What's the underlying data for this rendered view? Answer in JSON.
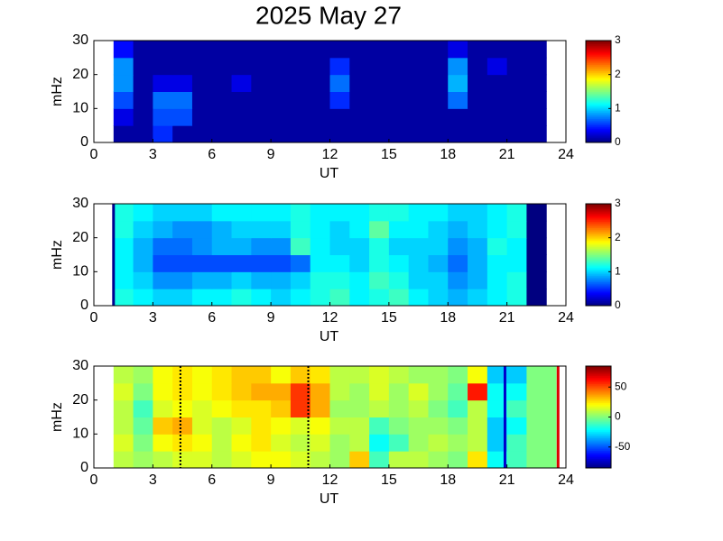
{
  "chart_data": [
    {
      "type": "heatmap",
      "title": "2025 May 27",
      "xlabel": "UT",
      "ylabel": "mHz",
      "colormap": "jet",
      "xlim": [
        0,
        24
      ],
      "xticks": [
        0,
        3,
        6,
        9,
        12,
        15,
        18,
        21,
        24
      ],
      "ylim": [
        0,
        30
      ],
      "yticks": [
        0,
        10,
        20,
        30
      ],
      "clim": [
        0,
        3
      ],
      "cticks": [
        0,
        1,
        2,
        3
      ],
      "x_edges": [
        1,
        2,
        3,
        4,
        5,
        6,
        7,
        8,
        9,
        10,
        11,
        12,
        13,
        14,
        15,
        16,
        17,
        18,
        19,
        20,
        21,
        22,
        23
      ],
      "y_edges": [
        0,
        5,
        10,
        15,
        20,
        25,
        30
      ],
      "values": [
        [
          0.1,
          0.1,
          0.5,
          0.1,
          0.1,
          0.1,
          0.1,
          0.1,
          0.1,
          0.1,
          0.1,
          0.1,
          0.1,
          0.1,
          0.1,
          0.1,
          0.1,
          0.1,
          0.1,
          0.1,
          0.1,
          0.1
        ],
        [
          0.3,
          0.1,
          0.6,
          0.6,
          0.1,
          0.1,
          0.1,
          0.1,
          0.1,
          0.1,
          0.1,
          0.1,
          0.1,
          0.1,
          0.1,
          0.1,
          0.1,
          0.1,
          0.1,
          0.1,
          0.1,
          0.1
        ],
        [
          0.6,
          0.1,
          0.7,
          0.7,
          0.1,
          0.1,
          0.1,
          0.1,
          0.1,
          0.1,
          0.1,
          0.5,
          0.1,
          0.1,
          0.1,
          0.1,
          0.1,
          0.7,
          0.1,
          0.1,
          0.1,
          0.1
        ],
        [
          0.8,
          0.1,
          0.3,
          0.3,
          0.1,
          0.1,
          0.3,
          0.1,
          0.1,
          0.1,
          0.1,
          0.7,
          0.1,
          0.1,
          0.1,
          0.1,
          0.1,
          0.9,
          0.1,
          0.1,
          0.1,
          0.1
        ],
        [
          0.8,
          0.1,
          0.1,
          0.1,
          0.1,
          0.1,
          0.1,
          0.1,
          0.1,
          0.1,
          0.1,
          0.5,
          0.1,
          0.1,
          0.1,
          0.1,
          0.1,
          0.8,
          0.1,
          0.3,
          0.1,
          0.1
        ],
        [
          0.4,
          0.1,
          0.1,
          0.1,
          0.1,
          0.1,
          0.1,
          0.1,
          0.1,
          0.1,
          0.1,
          0.1,
          0.1,
          0.1,
          0.1,
          0.1,
          0.1,
          0.3,
          0.1,
          0.1,
          0.1,
          0.1
        ]
      ],
      "vlines": []
    },
    {
      "type": "heatmap",
      "xlabel": "UT",
      "ylabel": "mHz",
      "colormap": "jet",
      "xlim": [
        0,
        24
      ],
      "xticks": [
        0,
        3,
        6,
        9,
        12,
        15,
        18,
        21,
        24
      ],
      "ylim": [
        0,
        30
      ],
      "yticks": [
        0,
        10,
        20,
        30
      ],
      "clim": [
        0,
        3
      ],
      "cticks": [
        0,
        1,
        2,
        3
      ],
      "x_edges": [
        1,
        2,
        3,
        4,
        5,
        6,
        7,
        8,
        9,
        10,
        11,
        12,
        13,
        14,
        15,
        16,
        17,
        18,
        19,
        20,
        21,
        22,
        23
      ],
      "y_edges": [
        0,
        5,
        10,
        15,
        20,
        25,
        30
      ],
      "values": [
        [
          1.2,
          1.1,
          1.0,
          1.0,
          1.1,
          1.1,
          1.2,
          1.1,
          1.0,
          1.1,
          1.2,
          1.3,
          1.1,
          1.2,
          1.3,
          1.1,
          1.0,
          0.9,
          1.0,
          1.1,
          1.2,
          0
        ],
        [
          1.1,
          1.0,
          0.8,
          0.8,
          0.9,
          0.9,
          1.0,
          0.9,
          0.9,
          1.0,
          1.2,
          1.2,
          1.1,
          1.3,
          1.2,
          1.0,
          1.0,
          0.8,
          0.9,
          1.1,
          1.2,
          0
        ],
        [
          1.1,
          0.9,
          0.6,
          0.6,
          0.6,
          0.6,
          0.6,
          0.6,
          0.6,
          0.7,
          1.1,
          1.1,
          1.0,
          1.2,
          1.1,
          1.0,
          0.9,
          0.7,
          0.9,
          1.1,
          1.1,
          0
        ],
        [
          1.1,
          0.9,
          0.7,
          0.7,
          0.8,
          0.9,
          0.9,
          0.8,
          0.8,
          1.3,
          1.1,
          1.0,
          1.0,
          1.2,
          1.0,
          1.0,
          1.0,
          0.8,
          0.9,
          1.2,
          1.1,
          0
        ],
        [
          1.2,
          1.0,
          0.9,
          0.8,
          0.8,
          0.9,
          1.0,
          1.0,
          1.0,
          1.2,
          1.1,
          1.0,
          1.1,
          1.4,
          1.1,
          1.1,
          1.0,
          0.9,
          1.0,
          1.1,
          1.2,
          0
        ],
        [
          1.2,
          1.1,
          1.0,
          1.0,
          1.0,
          1.1,
          1.1,
          1.1,
          1.1,
          1.2,
          1.1,
          1.1,
          1.1,
          1.2,
          1.2,
          1.1,
          1.1,
          1.0,
          1.0,
          1.1,
          1.2,
          0
        ]
      ],
      "vlines": [
        {
          "x": 1,
          "color": "#00008f",
          "style": "solid"
        }
      ]
    },
    {
      "type": "heatmap",
      "xlabel": "UT",
      "ylabel": "mHz",
      "colormap": "jet",
      "xlim": [
        0,
        24
      ],
      "xticks": [
        0,
        3,
        6,
        9,
        12,
        15,
        18,
        21,
        24
      ],
      "ylim": [
        0,
        30
      ],
      "yticks": [
        0,
        10,
        20,
        30
      ],
      "clim": [
        -85,
        85
      ],
      "cticks": [
        -50,
        0,
        50
      ],
      "x_edges": [
        1,
        2,
        3,
        4,
        5,
        6,
        7,
        8,
        9,
        10,
        11,
        12,
        13,
        14,
        15,
        16,
        17,
        18,
        19,
        20,
        21,
        22,
        23.5
      ],
      "y_edges": [
        0,
        5,
        10,
        15,
        20,
        25,
        30
      ],
      "values": [
        [
          10,
          5,
          10,
          15,
          15,
          10,
          15,
          20,
          20,
          15,
          10,
          5,
          30,
          -10,
          10,
          10,
          5,
          0,
          25,
          -20,
          -10,
          0
        ],
        [
          15,
          0,
          20,
          25,
          20,
          10,
          20,
          25,
          15,
          10,
          15,
          5,
          10,
          -20,
          -10,
          5,
          10,
          5,
          10,
          -30,
          -10,
          0
        ],
        [
          10,
          -5,
          30,
          35,
          15,
          10,
          15,
          25,
          20,
          15,
          20,
          10,
          10,
          -10,
          0,
          5,
          5,
          0,
          10,
          -30,
          -20,
          0
        ],
        [
          10,
          -10,
          15,
          20,
          15,
          20,
          25,
          25,
          30,
          55,
          35,
          5,
          5,
          10,
          5,
          10,
          0,
          -10,
          10,
          -20,
          -10,
          0
        ],
        [
          15,
          0,
          20,
          25,
          20,
          25,
          30,
          35,
          35,
          55,
          35,
          10,
          5,
          15,
          5,
          15,
          5,
          -5,
          60,
          -20,
          -20,
          0
        ],
        [
          10,
          5,
          20,
          25,
          20,
          25,
          30,
          30,
          20,
          30,
          25,
          10,
          10,
          15,
          10,
          5,
          5,
          0,
          20,
          -30,
          -30,
          0
        ]
      ],
      "vlines": [
        {
          "x": 4.4,
          "color": "#000000",
          "style": "dotted"
        },
        {
          "x": 10.9,
          "color": "#000000",
          "style": "dotted"
        },
        {
          "x": 20.9,
          "color": "#0000cc",
          "style": "solid"
        },
        {
          "x": 23.6,
          "color": "#dd0000",
          "style": "solid"
        }
      ]
    }
  ]
}
